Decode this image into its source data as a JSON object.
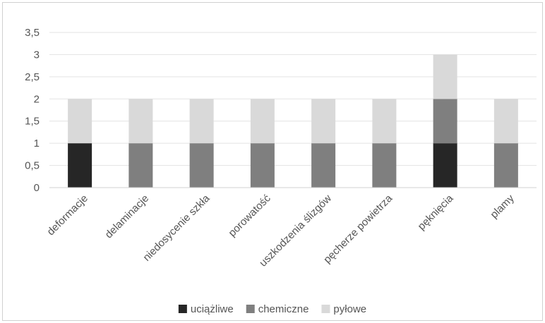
{
  "chart_data": {
    "type": "bar",
    "stacked": true,
    "categories": [
      "deformacje",
      "delaminacje",
      "niedosycenie szkła",
      "porowatość",
      "uszkodzenia ślizgów",
      "pęcherze powietrza",
      "pęknięcia",
      "plamy"
    ],
    "series": [
      {
        "name": "uciążliwe",
        "color": "#262626",
        "values": [
          1,
          0,
          0,
          0,
          0,
          0,
          1,
          0
        ]
      },
      {
        "name": "chemiczne",
        "color": "#7f7f7f",
        "values": [
          0,
          1,
          1,
          1,
          1,
          1,
          1,
          1
        ]
      },
      {
        "name": "pyłowe",
        "color": "#d9d9d9",
        "values": [
          1,
          1,
          1,
          1,
          1,
          1,
          1,
          1
        ]
      }
    ],
    "yticks": [
      "0",
      "0,5",
      "1",
      "1,5",
      "2",
      "2,5",
      "3",
      "3,5"
    ],
    "ylim": [
      0,
      3.5
    ],
    "grid": true,
    "legend_position": "bottom",
    "title": "",
    "xlabel": "",
    "ylabel": ""
  }
}
